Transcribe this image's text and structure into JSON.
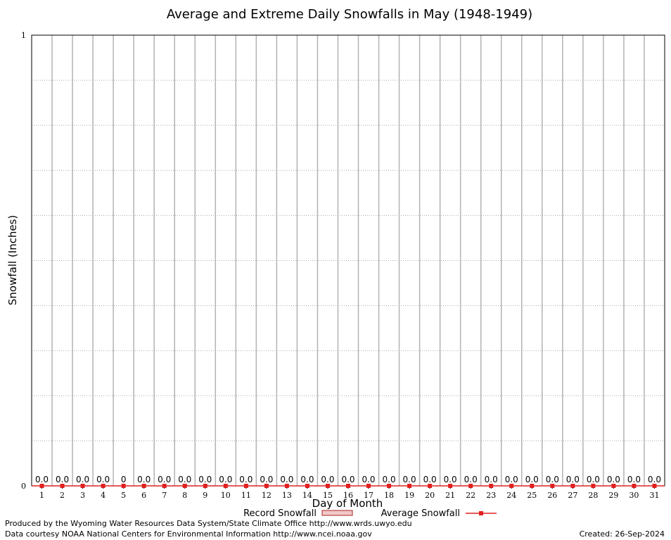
{
  "chart_data": {
    "type": "bar",
    "title": "Average and Extreme Daily Snowfalls in May (1948-1949)",
    "xlabel": "Day of Month",
    "ylabel": "Snowfall (Inches)",
    "ylim": [
      0,
      1
    ],
    "yticks": [
      "0",
      "1"
    ],
    "grid": true,
    "legend_position": "bottom",
    "categories": [
      "1",
      "2",
      "3",
      "4",
      "5",
      "6",
      "7",
      "8",
      "9",
      "10",
      "11",
      "12",
      "13",
      "14",
      "15",
      "16",
      "17",
      "18",
      "19",
      "20",
      "21",
      "22",
      "23",
      "24",
      "25",
      "26",
      "27",
      "28",
      "29",
      "30",
      "31"
    ],
    "series": [
      {
        "name": "Record Snowfall",
        "kind": "bar",
        "color": "#cc3333",
        "values": [
          0,
          0,
          0,
          0,
          0,
          0,
          0,
          0,
          0,
          0,
          0,
          0,
          0,
          0,
          0,
          0,
          0,
          0,
          0,
          0,
          0,
          0,
          0,
          0,
          0,
          0,
          0,
          0,
          0,
          0,
          0
        ]
      },
      {
        "name": "Average Snowfall",
        "kind": "line",
        "color": "#e02020",
        "values": [
          0,
          0,
          0,
          0,
          0,
          0,
          0,
          0,
          0,
          0,
          0,
          0,
          0,
          0,
          0,
          0,
          0,
          0,
          0,
          0,
          0,
          0,
          0,
          0,
          0,
          0,
          0,
          0,
          0,
          0,
          0
        ]
      }
    ],
    "data_labels": [
      "0.0",
      "0.0",
      "0.0",
      "0.0",
      "0",
      "0.0",
      "0.0",
      "0.0",
      "0.0",
      "0.0",
      "0.0",
      "0.0",
      "0.0",
      "0.0",
      "0.0",
      "0.0",
      "0.0",
      "0.0",
      "0.0",
      "0.0",
      "0.0",
      "0.0",
      "0.0",
      "0.0",
      "0.0",
      "0.0",
      "0.0",
      "0.0",
      "0.0",
      "0.0",
      "0.0"
    ]
  },
  "footer": {
    "produced_by": "Produced by the Wyoming Water Resources Data System/State Climate Office http://www.wrds.uwyo.edu",
    "data_courtesy": "Data courtesy NOAA National Centers for Environmental Information http://www.ncei.noaa.gov",
    "created": "Created: 26-Sep-2024"
  }
}
